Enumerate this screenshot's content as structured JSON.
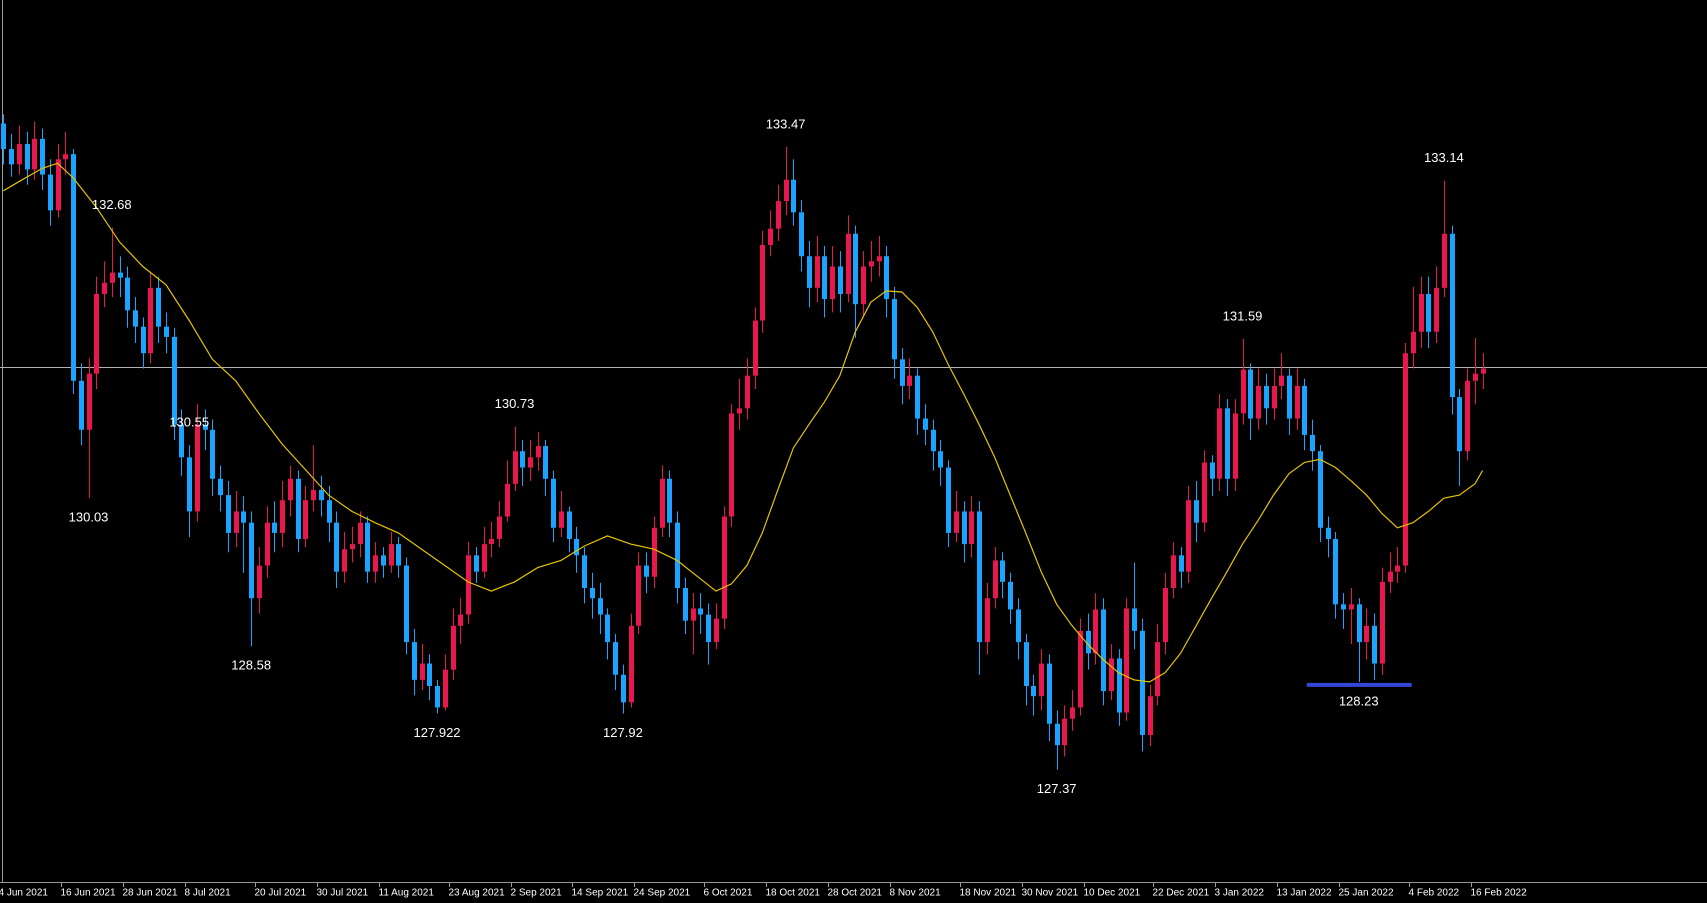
{
  "chart_data": {
    "type": "candlestick",
    "up_color": "#e8174d",
    "down_color": "#1aa3ff",
    "background": "#000000",
    "xlim": [
      -0.43,
      219.97
    ],
    "ylim": [
      126.27,
      134.91
    ],
    "xticks": [
      {
        "value": 0,
        "label": "4 Jun 2021"
      },
      {
        "value": 8,
        "label": "16 Jun 2021"
      },
      {
        "value": 16,
        "label": "28 Jun 2021"
      },
      {
        "value": 24,
        "label": "8 Jul 2021"
      },
      {
        "value": 33,
        "label": "20 Jul 2021"
      },
      {
        "value": 41,
        "label": "30 Jul 2021"
      },
      {
        "value": 49,
        "label": "11 Aug 2021"
      },
      {
        "value": 58,
        "label": "23 Aug 2021"
      },
      {
        "value": 66,
        "label": "2 Sep 2021"
      },
      {
        "value": 74,
        "label": "14 Sep 2021"
      },
      {
        "value": 82,
        "label": "24 Sep 2021"
      },
      {
        "value": 91,
        "label": "6 Oct 2021"
      },
      {
        "value": 99,
        "label": "18 Oct 2021"
      },
      {
        "value": 107,
        "label": "28 Oct 2021"
      },
      {
        "value": 115,
        "label": "8 Nov 2021"
      },
      {
        "value": 124,
        "label": "18 Nov 2021"
      },
      {
        "value": 132,
        "label": "30 Nov 2021"
      },
      {
        "value": 140,
        "label": "10 Dec 2021"
      },
      {
        "value": 149,
        "label": "22 Dec 2021"
      },
      {
        "value": 157,
        "label": "3 Jan 2022"
      },
      {
        "value": 165,
        "label": "13 Jan 2022"
      },
      {
        "value": 173,
        "label": "25 Jan 2022"
      },
      {
        "value": 182,
        "label": "4 Feb 2022"
      },
      {
        "value": 190,
        "label": "16 Feb 2022"
      }
    ],
    "hline": 131.31,
    "support_level": 128.23,
    "support_color": "#3646d6",
    "high_labels": [
      132.68,
      130.55,
      130.73,
      133.47,
      131.59,
      133.14
    ],
    "low_labels": [
      130.03,
      128.58,
      127.922,
      127.92,
      127.37,
      128.23
    ],
    "ohlc": [
      [
        133.7,
        133.79,
        133.3,
        133.45
      ],
      [
        133.45,
        133.6,
        133.18,
        133.3
      ],
      [
        133.3,
        133.68,
        133.2,
        133.5
      ],
      [
        133.5,
        133.62,
        133.1,
        133.25
      ],
      [
        133.25,
        133.72,
        133.15,
        133.55
      ],
      [
        133.55,
        133.65,
        133.05,
        133.2
      ],
      [
        133.2,
        133.35,
        132.7,
        132.85
      ],
      [
        132.85,
        133.5,
        132.78,
        133.35
      ],
      [
        133.35,
        133.62,
        133.2,
        133.4
      ],
      [
        133.4,
        133.45,
        131.05,
        131.18
      ],
      [
        131.18,
        131.35,
        130.55,
        130.7
      ],
      [
        130.7,
        131.4,
        130.03,
        131.25
      ],
      [
        131.25,
        132.2,
        131.1,
        132.03
      ],
      [
        132.03,
        132.35,
        131.9,
        132.14
      ],
      [
        132.14,
        132.68,
        132.0,
        132.24
      ],
      [
        132.24,
        132.4,
        132.0,
        132.19
      ],
      [
        132.19,
        132.3,
        131.7,
        131.87
      ],
      [
        131.87,
        132.0,
        131.55,
        131.71
      ],
      [
        131.71,
        131.8,
        131.3,
        131.45
      ],
      [
        131.45,
        132.25,
        131.35,
        132.09
      ],
      [
        132.09,
        132.2,
        131.55,
        131.71
      ],
      [
        131.71,
        131.85,
        131.45,
        131.61
      ],
      [
        131.61,
        131.7,
        130.6,
        130.75
      ],
      [
        130.75,
        130.9,
        130.25,
        130.43
      ],
      [
        130.43,
        130.55,
        129.65,
        129.9
      ],
      [
        129.9,
        130.95,
        129.8,
        130.75
      ],
      [
        130.75,
        130.9,
        130.5,
        130.7
      ],
      [
        130.7,
        130.8,
        130.05,
        130.22
      ],
      [
        130.22,
        130.35,
        129.9,
        130.06
      ],
      [
        130.06,
        130.2,
        129.5,
        129.69
      ],
      [
        129.69,
        130.1,
        129.55,
        129.9
      ],
      [
        129.9,
        130.05,
        129.3,
        129.79
      ],
      [
        129.79,
        129.9,
        128.58,
        129.05
      ],
      [
        129.05,
        129.55,
        128.9,
        129.37
      ],
      [
        129.37,
        129.95,
        129.25,
        129.79
      ],
      [
        129.79,
        130.0,
        129.5,
        129.69
      ],
      [
        129.69,
        130.2,
        129.55,
        130.01
      ],
      [
        130.01,
        130.35,
        129.85,
        130.22
      ],
      [
        130.22,
        130.3,
        129.5,
        129.63
      ],
      [
        129.63,
        130.15,
        129.55,
        130.01
      ],
      [
        130.01,
        130.55,
        129.9,
        130.11
      ],
      [
        130.11,
        130.25,
        129.85,
        130.01
      ],
      [
        130.01,
        130.15,
        129.6,
        129.79
      ],
      [
        129.79,
        129.9,
        129.15,
        129.31
      ],
      [
        129.31,
        129.7,
        129.2,
        129.53
      ],
      [
        129.53,
        129.75,
        129.4,
        129.58
      ],
      [
        129.58,
        129.9,
        129.45,
        129.79
      ],
      [
        129.79,
        129.85,
        129.2,
        129.31
      ],
      [
        129.31,
        129.6,
        129.2,
        129.47
      ],
      [
        129.47,
        129.55,
        129.25,
        129.37
      ],
      [
        129.37,
        129.7,
        129.3,
        129.58
      ],
      [
        129.58,
        129.65,
        129.25,
        129.37
      ],
      [
        129.37,
        129.45,
        128.5,
        128.62
      ],
      [
        128.62,
        128.75,
        128.1,
        128.25
      ],
      [
        128.25,
        128.6,
        128.15,
        128.41
      ],
      [
        128.41,
        128.5,
        128.05,
        128.19
      ],
      [
        128.19,
        128.25,
        127.922,
        127.98
      ],
      [
        127.98,
        128.5,
        127.95,
        128.35
      ],
      [
        128.35,
        128.95,
        128.25,
        128.78
      ],
      [
        128.78,
        129.05,
        128.6,
        128.89
      ],
      [
        128.89,
        129.6,
        128.8,
        129.47
      ],
      [
        129.47,
        129.55,
        129.2,
        129.31
      ],
      [
        129.31,
        129.75,
        129.25,
        129.58
      ],
      [
        129.58,
        129.8,
        129.45,
        129.63
      ],
      [
        129.63,
        130.0,
        129.55,
        129.85
      ],
      [
        129.85,
        130.4,
        129.8,
        130.17
      ],
      [
        130.17,
        130.73,
        130.1,
        130.49
      ],
      [
        130.49,
        130.6,
        130.15,
        130.33
      ],
      [
        130.33,
        130.6,
        130.2,
        130.43
      ],
      [
        130.43,
        130.68,
        130.3,
        130.54
      ],
      [
        130.54,
        130.6,
        130.05,
        130.22
      ],
      [
        130.22,
        130.3,
        129.6,
        129.74
      ],
      [
        129.74,
        130.1,
        129.65,
        129.9
      ],
      [
        129.9,
        129.95,
        129.5,
        129.63
      ],
      [
        129.63,
        129.75,
        129.3,
        129.47
      ],
      [
        129.47,
        129.55,
        129.0,
        129.15
      ],
      [
        129.15,
        129.3,
        128.85,
        129.05
      ],
      [
        129.05,
        129.2,
        128.7,
        128.89
      ],
      [
        128.89,
        128.95,
        128.45,
        128.62
      ],
      [
        128.62,
        128.7,
        128.15,
        128.3
      ],
      [
        128.3,
        128.4,
        127.92,
        128.03
      ],
      [
        128.03,
        128.9,
        127.98,
        128.78
      ],
      [
        128.78,
        129.5,
        128.7,
        129.37
      ],
      [
        129.37,
        129.5,
        129.1,
        129.26
      ],
      [
        129.26,
        129.85,
        129.15,
        129.74
      ],
      [
        129.74,
        130.35,
        129.65,
        130.22
      ],
      [
        130.22,
        130.3,
        129.65,
        129.79
      ],
      [
        129.79,
        129.9,
        129.0,
        129.15
      ],
      [
        129.15,
        129.25,
        128.7,
        128.83
      ],
      [
        128.83,
        129.1,
        128.5,
        128.95
      ],
      [
        128.95,
        129.1,
        128.7,
        128.89
      ],
      [
        128.89,
        129.0,
        128.4,
        128.62
      ],
      [
        128.62,
        129.0,
        128.55,
        128.85
      ],
      [
        128.85,
        129.95,
        128.75,
        129.85
      ],
      [
        129.85,
        130.95,
        129.75,
        130.86
      ],
      [
        130.86,
        131.2,
        130.7,
        130.91
      ],
      [
        130.91,
        131.4,
        130.8,
        131.23
      ],
      [
        131.23,
        131.9,
        131.1,
        131.77
      ],
      [
        131.77,
        132.65,
        131.65,
        132.51
      ],
      [
        132.51,
        132.85,
        132.4,
        132.67
      ],
      [
        132.67,
        133.1,
        132.55,
        132.94
      ],
      [
        132.94,
        133.47,
        132.8,
        133.15
      ],
      [
        133.15,
        133.35,
        132.7,
        132.83
      ],
      [
        132.83,
        132.95,
        132.25,
        132.4
      ],
      [
        132.4,
        132.55,
        131.9,
        132.09
      ],
      [
        132.09,
        132.6,
        131.95,
        132.4
      ],
      [
        132.4,
        132.5,
        131.8,
        131.98
      ],
      [
        131.98,
        132.5,
        131.85,
        132.3
      ],
      [
        132.3,
        132.45,
        131.85,
        132.03
      ],
      [
        132.03,
        132.8,
        131.95,
        132.62
      ],
      [
        132.62,
        132.7,
        131.6,
        131.93
      ],
      [
        131.93,
        132.45,
        131.8,
        132.3
      ],
      [
        132.3,
        132.55,
        132.15,
        132.35
      ],
      [
        132.35,
        132.6,
        132.2,
        132.4
      ],
      [
        132.4,
        132.5,
        131.8,
        131.98
      ],
      [
        131.98,
        132.1,
        131.2,
        131.39
      ],
      [
        131.39,
        131.5,
        130.95,
        131.13
      ],
      [
        131.13,
        131.4,
        131.0,
        131.23
      ],
      [
        131.23,
        131.3,
        130.65,
        130.81
      ],
      [
        130.81,
        130.95,
        130.55,
        130.7
      ],
      [
        130.7,
        130.8,
        130.3,
        130.49
      ],
      [
        130.49,
        130.6,
        130.15,
        130.33
      ],
      [
        130.33,
        130.4,
        129.55,
        129.69
      ],
      [
        129.69,
        130.1,
        129.6,
        129.9
      ],
      [
        129.9,
        130.0,
        129.4,
        129.58
      ],
      [
        129.58,
        130.05,
        129.45,
        129.9
      ],
      [
        129.9,
        130.0,
        128.3,
        128.62
      ],
      [
        128.62,
        129.2,
        128.5,
        129.05
      ],
      [
        129.05,
        129.55,
        128.95,
        129.42
      ],
      [
        129.42,
        129.5,
        129.05,
        129.21
      ],
      [
        129.21,
        129.3,
        128.8,
        128.94
      ],
      [
        128.94,
        129.05,
        128.45,
        128.62
      ],
      [
        128.62,
        128.7,
        128.0,
        128.19
      ],
      [
        128.19,
        128.3,
        127.9,
        128.09
      ],
      [
        128.09,
        128.55,
        127.95,
        128.41
      ],
      [
        128.41,
        128.5,
        127.65,
        127.82
      ],
      [
        127.82,
        127.95,
        127.37,
        127.61
      ],
      [
        127.61,
        128.0,
        127.5,
        127.87
      ],
      [
        127.87,
        128.15,
        127.75,
        127.98
      ],
      [
        127.98,
        128.85,
        127.9,
        128.73
      ],
      [
        128.73,
        128.9,
        128.35,
        128.51
      ],
      [
        128.51,
        129.1,
        128.4,
        128.94
      ],
      [
        128.94,
        129.05,
        128.0,
        128.14
      ],
      [
        128.14,
        128.6,
        128.05,
        128.46
      ],
      [
        128.46,
        128.55,
        127.8,
        127.93
      ],
      [
        127.93,
        129.05,
        127.85,
        128.95
      ],
      [
        128.95,
        129.4,
        128.55,
        128.73
      ],
      [
        128.73,
        128.85,
        127.55,
        127.71
      ],
      [
        127.71,
        128.2,
        127.6,
        128.09
      ],
      [
        128.09,
        128.8,
        128.0,
        128.62
      ],
      [
        128.62,
        129.3,
        128.5,
        129.15
      ],
      [
        129.15,
        129.6,
        129.05,
        129.47
      ],
      [
        129.47,
        129.55,
        129.15,
        129.31
      ],
      [
        129.31,
        130.15,
        129.2,
        130.01
      ],
      [
        130.01,
        130.2,
        129.6,
        129.79
      ],
      [
        129.79,
        130.5,
        129.7,
        130.38
      ],
      [
        130.38,
        130.45,
        130.05,
        130.22
      ],
      [
        130.22,
        131.05,
        130.1,
        130.91
      ],
      [
        130.91,
        131.0,
        130.05,
        130.22
      ],
      [
        130.22,
        131.0,
        130.1,
        130.86
      ],
      [
        130.86,
        131.59,
        130.75,
        131.29
      ],
      [
        131.29,
        131.35,
        130.6,
        130.81
      ],
      [
        130.81,
        131.3,
        130.7,
        131.13
      ],
      [
        131.13,
        131.25,
        130.75,
        130.91
      ],
      [
        130.91,
        131.3,
        130.8,
        131.13
      ],
      [
        131.13,
        131.45,
        131.0,
        131.23
      ],
      [
        131.23,
        131.3,
        130.65,
        130.81
      ],
      [
        130.81,
        131.3,
        130.7,
        131.13
      ],
      [
        131.13,
        131.2,
        130.5,
        130.65
      ],
      [
        130.65,
        130.8,
        130.3,
        130.49
      ],
      [
        130.49,
        130.55,
        129.6,
        129.74
      ],
      [
        129.74,
        129.85,
        129.45,
        129.63
      ],
      [
        129.63,
        129.7,
        128.85,
        128.99
      ],
      [
        128.99,
        129.1,
        128.75,
        128.94
      ],
      [
        128.94,
        129.15,
        128.6,
        128.99
      ],
      [
        128.99,
        129.05,
        128.23,
        128.62
      ],
      [
        128.62,
        128.95,
        128.45,
        128.78
      ],
      [
        128.78,
        128.9,
        128.25,
        128.41
      ],
      [
        128.41,
        129.35,
        128.3,
        129.21
      ],
      [
        129.21,
        129.5,
        129.1,
        129.31
      ],
      [
        129.31,
        129.55,
        129.2,
        129.37
      ],
      [
        129.37,
        131.55,
        129.3,
        131.45
      ],
      [
        131.45,
        132.1,
        131.3,
        131.66
      ],
      [
        131.66,
        132.2,
        131.5,
        132.03
      ],
      [
        132.03,
        132.2,
        131.5,
        131.66
      ],
      [
        131.66,
        132.3,
        131.55,
        132.09
      ],
      [
        132.09,
        133.14,
        132.0,
        132.62
      ],
      [
        132.62,
        132.7,
        130.85,
        131.02
      ],
      [
        131.02,
        131.1,
        130.15,
        130.49
      ],
      [
        130.49,
        131.3,
        130.4,
        131.18
      ],
      [
        131.18,
        131.6,
        130.95,
        131.25
      ],
      [
        131.25,
        131.45,
        131.1,
        131.3
      ]
    ],
    "ma": {
      "color": "#e6c300",
      "x": [
        0,
        2,
        5,
        7,
        9,
        12,
        15,
        18,
        21,
        24,
        27,
        30,
        33,
        36,
        39,
        42,
        45,
        48,
        51,
        54,
        57,
        60,
        63,
        66,
        69,
        72,
        75,
        78,
        81,
        84,
        87,
        90,
        92,
        94,
        96,
        98,
        100,
        102,
        104,
        106,
        108,
        110,
        112,
        114,
        116,
        118,
        120,
        122,
        124,
        126,
        128,
        130,
        132,
        134,
        136,
        138,
        140,
        142,
        144,
        146,
        148,
        150,
        152,
        154,
        156,
        158,
        160,
        162,
        164,
        166,
        168,
        170,
        172,
        174,
        176,
        178,
        180,
        182,
        184,
        186,
        188,
        190,
        191
      ],
      "values": [
        133.04,
        133.13,
        133.26,
        133.31,
        133.17,
        132.88,
        132.54,
        132.3,
        132.12,
        131.77,
        131.39,
        131.18,
        130.86,
        130.56,
        130.31,
        130.06,
        129.9,
        129.79,
        129.69,
        129.53,
        129.37,
        129.21,
        129.12,
        129.21,
        129.35,
        129.42,
        129.56,
        129.66,
        129.58,
        129.53,
        129.42,
        129.24,
        129.12,
        129.19,
        129.37,
        129.69,
        130.11,
        130.52,
        130.75,
        130.97,
        131.23,
        131.66,
        131.95,
        132.06,
        132.05,
        131.9,
        131.66,
        131.34,
        131.05,
        130.75,
        130.43,
        130.06,
        129.69,
        129.31,
        128.99,
        128.78,
        128.6,
        128.45,
        128.32,
        128.25,
        128.23,
        128.32,
        128.51,
        128.78,
        129.05,
        129.31,
        129.58,
        129.81,
        130.06,
        130.27,
        130.38,
        130.41,
        130.33,
        130.2,
        130.06,
        129.88,
        129.74,
        129.79,
        129.9,
        130.03,
        130.06,
        130.17,
        130.3
      ]
    }
  }
}
